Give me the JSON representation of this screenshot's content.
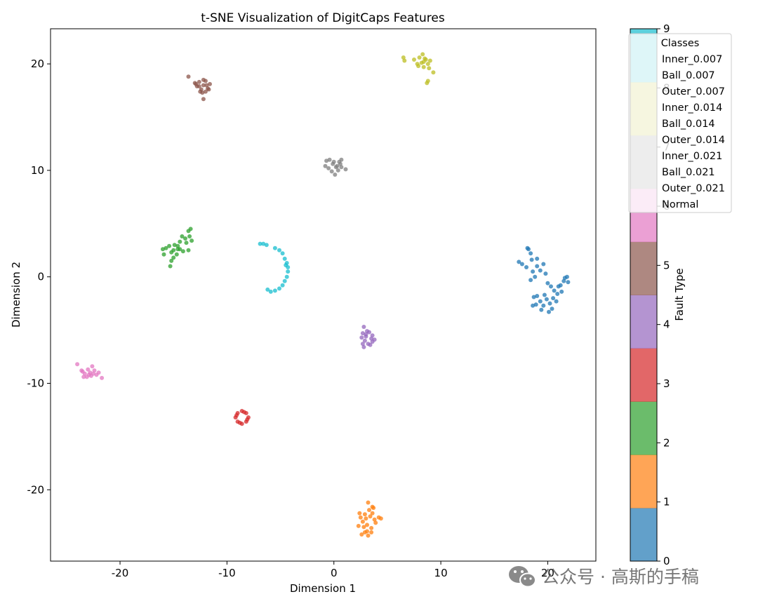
{
  "chart_data": {
    "type": "scatter",
    "title": "t-SNE Visualization of DigitCaps Features",
    "xlabel": "Dimension 1",
    "ylabel": "Dimension 2",
    "xlim": [
      -26.5,
      24.5
    ],
    "ylim": [
      -26.7,
      23.3
    ],
    "xticks": [
      -20,
      -10,
      0,
      10,
      20
    ],
    "yticks": [
      -20,
      -10,
      0,
      10,
      20
    ],
    "grid": false,
    "colorbar": {
      "label": "Fault Type",
      "range": [
        0,
        9
      ],
      "ticks": [
        0,
        1,
        2,
        3,
        4,
        5,
        6,
        7,
        8,
        9
      ]
    },
    "legend": {
      "title": "Classes",
      "placement": "top-right",
      "entries": [
        "Inner_0.007",
        "Ball_0.007",
        "Outer_0.007",
        "Inner_0.014",
        "Ball_0.014",
        "Outer_0.014",
        "Inner_0.021",
        "Ball_0.021",
        "Outer_0.021",
        "Normal"
      ]
    },
    "series": [
      {
        "class": 0,
        "color": "#1f77b4",
        "points": [
          [
            17.3,
            1.4
          ],
          [
            17.6,
            1.2
          ],
          [
            18.0,
            0.9
          ],
          [
            18.2,
            2.6
          ],
          [
            18.4,
            2.2
          ],
          [
            18.5,
            1.6
          ],
          [
            18.6,
            0.5
          ],
          [
            18.8,
            0.0
          ],
          [
            18.4,
            -0.3
          ],
          [
            19.0,
            1.0
          ],
          [
            19.3,
            0.6
          ],
          [
            19.6,
            1.2
          ],
          [
            19.8,
            0.3
          ],
          [
            20.0,
            -0.6
          ],
          [
            20.3,
            -0.9
          ],
          [
            20.6,
            -1.3
          ],
          [
            20.9,
            -1.6
          ],
          [
            21.2,
            -0.8
          ],
          [
            21.5,
            -0.4
          ],
          [
            21.8,
            0.0
          ],
          [
            21.9,
            -0.5
          ],
          [
            19.0,
            -1.8
          ],
          [
            19.3,
            -2.3
          ],
          [
            19.6,
            -2.7
          ],
          [
            19.9,
            -2.1
          ],
          [
            20.2,
            -2.5
          ],
          [
            20.5,
            -2.0
          ],
          [
            20.1,
            -3.3
          ],
          [
            19.4,
            -3.1
          ],
          [
            18.9,
            -2.6
          ],
          [
            18.6,
            -2.7
          ],
          [
            19.7,
            -1.7
          ],
          [
            20.8,
            -2.3
          ],
          [
            21.3,
            -1.4
          ],
          [
            21.6,
            -0.1
          ],
          [
            18.1,
            2.7
          ],
          [
            19.0,
            1.7
          ],
          [
            20.4,
            -3.0
          ],
          [
            18.7,
            -1.9
          ],
          [
            21.0,
            -0.9
          ]
        ]
      },
      {
        "class": 1,
        "color": "#ff7f0e",
        "points": [
          [
            2.6,
            -24.2
          ],
          [
            2.9,
            -24.0
          ],
          [
            3.2,
            -24.3
          ],
          [
            3.5,
            -23.6
          ],
          [
            3.1,
            -23.3
          ],
          [
            2.7,
            -23.0
          ],
          [
            3.0,
            -22.7
          ],
          [
            3.4,
            -22.5
          ],
          [
            3.8,
            -22.8
          ],
          [
            4.2,
            -22.6
          ],
          [
            3.6,
            -22.2
          ],
          [
            2.9,
            -22.3
          ],
          [
            2.5,
            -22.6
          ],
          [
            3.3,
            -21.9
          ],
          [
            3.6,
            -21.6
          ],
          [
            3.2,
            -21.2
          ],
          [
            3.9,
            -23.1
          ],
          [
            2.3,
            -23.4
          ],
          [
            2.4,
            -22.2
          ],
          [
            3.1,
            -23.9
          ],
          [
            2.8,
            -23.5
          ],
          [
            3.5,
            -24.0
          ],
          [
            4.4,
            -22.7
          ],
          [
            3.7,
            -21.7
          ]
        ]
      },
      {
        "class": 2,
        "color": "#2ca02c",
        "points": [
          [
            -16.0,
            2.6
          ],
          [
            -15.7,
            2.7
          ],
          [
            -15.4,
            2.9
          ],
          [
            -15.2,
            2.3
          ],
          [
            -15.0,
            2.5
          ],
          [
            -14.7,
            2.1
          ],
          [
            -14.6,
            2.9
          ],
          [
            -14.4,
            3.3
          ],
          [
            -14.2,
            3.8
          ],
          [
            -13.9,
            3.6
          ],
          [
            -13.6,
            4.3
          ],
          [
            -13.4,
            4.5
          ],
          [
            -13.8,
            3.2
          ],
          [
            -14.4,
            2.6
          ],
          [
            -15.2,
            1.5
          ],
          [
            -15.3,
            1.0
          ],
          [
            -15.9,
            2.1
          ],
          [
            -13.6,
            2.5
          ],
          [
            -13.3,
            3.4
          ],
          [
            -14.9,
            3.0
          ],
          [
            -14.6,
            2.6
          ],
          [
            -15.0,
            1.8
          ],
          [
            -14.1,
            2.4
          ],
          [
            -13.5,
            3.8
          ]
        ]
      },
      {
        "class": 3,
        "color": "#d62728",
        "points": [
          [
            -8.6,
            -12.6
          ],
          [
            -8.2,
            -12.8
          ],
          [
            -8.0,
            -13.2
          ],
          [
            -8.2,
            -13.6
          ],
          [
            -8.6,
            -13.8
          ],
          [
            -9.0,
            -13.6
          ],
          [
            -9.2,
            -13.2
          ],
          [
            -9.0,
            -12.8
          ],
          [
            -8.4,
            -12.7
          ],
          [
            -8.1,
            -13.4
          ],
          [
            -8.8,
            -13.7
          ],
          [
            -9.1,
            -13.0
          ]
        ]
      },
      {
        "class": 4,
        "color": "#9467bd",
        "points": [
          [
            2.8,
            -4.7
          ],
          [
            2.7,
            -5.3
          ],
          [
            3.0,
            -5.6
          ],
          [
            3.3,
            -5.2
          ],
          [
            3.5,
            -5.8
          ],
          [
            2.9,
            -6.0
          ],
          [
            2.6,
            -5.7
          ],
          [
            3.2,
            -6.3
          ],
          [
            3.6,
            -6.1
          ],
          [
            3.8,
            -5.9
          ],
          [
            2.8,
            -6.6
          ],
          [
            3.4,
            -6.4
          ],
          [
            3.0,
            -5.4
          ],
          [
            3.6,
            -5.5
          ],
          [
            2.7,
            -6.3
          ],
          [
            3.1,
            -5.1
          ]
        ]
      },
      {
        "class": 5,
        "color": "#8c564b",
        "points": [
          [
            -13.6,
            18.8
          ],
          [
            -13.0,
            18.2
          ],
          [
            -12.8,
            17.9
          ],
          [
            -12.6,
            18.3
          ],
          [
            -12.4,
            17.6
          ],
          [
            -12.2,
            18.0
          ],
          [
            -12.0,
            18.4
          ],
          [
            -11.8,
            17.7
          ],
          [
            -11.6,
            18.1
          ],
          [
            -12.3,
            17.3
          ],
          [
            -12.0,
            17.4
          ],
          [
            -11.7,
            17.6
          ],
          [
            -12.2,
            18.5
          ],
          [
            -12.9,
            18.1
          ],
          [
            -12.5,
            17.4
          ],
          [
            -12.2,
            16.7
          ],
          [
            -11.9,
            18.0
          ],
          [
            -12.6,
            17.9
          ]
        ]
      },
      {
        "class": 6,
        "color": "#e377c2",
        "points": [
          [
            -24.0,
            -8.2
          ],
          [
            -23.6,
            -8.8
          ],
          [
            -23.3,
            -9.1
          ],
          [
            -23.0,
            -8.7
          ],
          [
            -22.8,
            -9.0
          ],
          [
            -22.6,
            -8.4
          ],
          [
            -22.4,
            -8.8
          ],
          [
            -22.2,
            -9.2
          ],
          [
            -22.0,
            -9.0
          ],
          [
            -21.7,
            -9.5
          ],
          [
            -23.4,
            -9.4
          ],
          [
            -23.1,
            -9.4
          ],
          [
            -22.7,
            -9.3
          ],
          [
            -23.5,
            -8.9
          ],
          [
            -22.9,
            -9.2
          ],
          [
            -22.5,
            -9.1
          ]
        ]
      },
      {
        "class": 7,
        "color": "#7f7f7f",
        "points": [
          [
            -0.7,
            10.9
          ],
          [
            -0.4,
            11.0
          ],
          [
            -0.1,
            10.6
          ],
          [
            0.2,
            10.3
          ],
          [
            0.5,
            10.8
          ],
          [
            0.7,
            11.0
          ],
          [
            -0.5,
            10.2
          ],
          [
            -0.2,
            9.9
          ],
          [
            0.1,
            9.6
          ],
          [
            0.3,
            10.4
          ],
          [
            0.7,
            10.3
          ],
          [
            1.1,
            10.1
          ],
          [
            -0.8,
            10.4
          ],
          [
            0.0,
            10.8
          ],
          [
            0.4,
            10.0
          ],
          [
            0.6,
            10.6
          ]
        ]
      },
      {
        "class": 8,
        "color": "#bcbd22",
        "points": [
          [
            6.5,
            20.6
          ],
          [
            6.6,
            20.3
          ],
          [
            7.5,
            20.4
          ],
          [
            7.8,
            20.0
          ],
          [
            8.0,
            20.6
          ],
          [
            8.2,
            20.1
          ],
          [
            8.4,
            19.7
          ],
          [
            8.6,
            20.4
          ],
          [
            8.8,
            20.0
          ],
          [
            8.9,
            19.6
          ],
          [
            8.3,
            20.9
          ],
          [
            9.0,
            20.3
          ],
          [
            8.7,
            18.2
          ],
          [
            8.8,
            18.4
          ],
          [
            9.3,
            19.2
          ],
          [
            8.5,
            20.5
          ],
          [
            7.9,
            19.8
          ],
          [
            8.4,
            20.2
          ]
        ]
      },
      {
        "class": 9,
        "color": "#17becf",
        "points": [
          [
            -6.9,
            3.1
          ],
          [
            -6.6,
            3.1
          ],
          [
            -6.3,
            3.0
          ],
          [
            -5.5,
            2.7
          ],
          [
            -5.1,
            2.5
          ],
          [
            -4.8,
            2.2
          ],
          [
            -4.6,
            1.7
          ],
          [
            -4.4,
            1.3
          ],
          [
            -4.3,
            0.9
          ],
          [
            -4.3,
            0.5
          ],
          [
            -4.4,
            0.0
          ],
          [
            -4.6,
            -0.4
          ],
          [
            -4.8,
            -0.8
          ],
          [
            -5.1,
            -1.1
          ],
          [
            -5.5,
            -1.3
          ],
          [
            -5.9,
            -1.4
          ],
          [
            -6.2,
            -1.2
          ],
          [
            -4.5,
            1.1
          ]
        ]
      }
    ]
  },
  "watermark": {
    "text": "公众号 · 高斯的手稿",
    "icon": "wechat-icon"
  }
}
